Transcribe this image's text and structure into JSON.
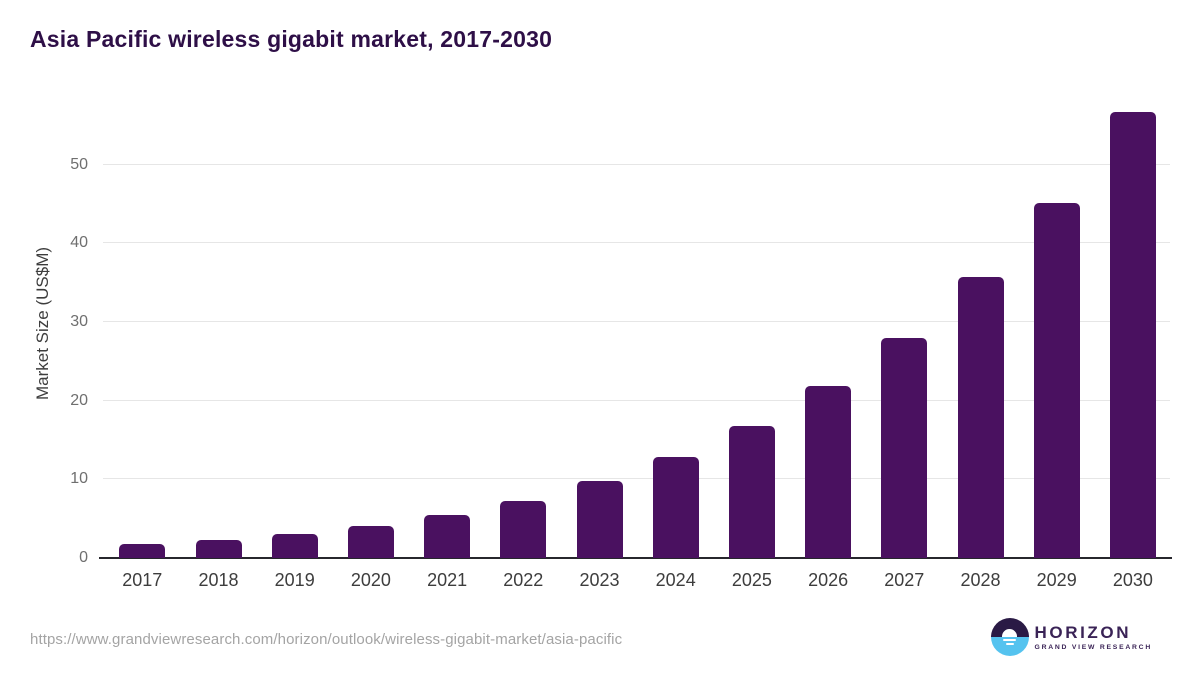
{
  "chart_data": {
    "type": "bar",
    "title": "Asia Pacific wireless gigabit market, 2017-2030",
    "xlabel": "",
    "ylabel": "Market Size (US$M)",
    "categories": [
      "2017",
      "2018",
      "2019",
      "2020",
      "2021",
      "2022",
      "2023",
      "2024",
      "2025",
      "2026",
      "2027",
      "2028",
      "2029",
      "2030"
    ],
    "values": [
      1.8,
      2.3,
      3.0,
      4.1,
      5.5,
      7.3,
      9.8,
      12.9,
      16.8,
      21.9,
      28.0,
      35.7,
      45.1,
      56.7
    ],
    "yticks": [
      0,
      10,
      20,
      30,
      40,
      50
    ],
    "ylim": [
      0,
      58.2
    ],
    "grid": "horizontal-only",
    "legend": "none",
    "bar_color": "#4a1160",
    "title_color": "#2e0f47",
    "gridline_color": "#e6e6e6",
    "axis_line_color": "#27272d"
  },
  "footer": {
    "source_url": "https://www.grandviewresearch.com/horizon/outlook/wireless-gigabit-market/asia-pacific",
    "logo": {
      "brand": "HORIZON",
      "subtitle": "GRAND VIEW RESEARCH",
      "icon": "horizon-sun-water-icon",
      "navy_color": "#2a1a45",
      "blue_color": "#55c3ef",
      "text_color": "#3a2356"
    }
  }
}
